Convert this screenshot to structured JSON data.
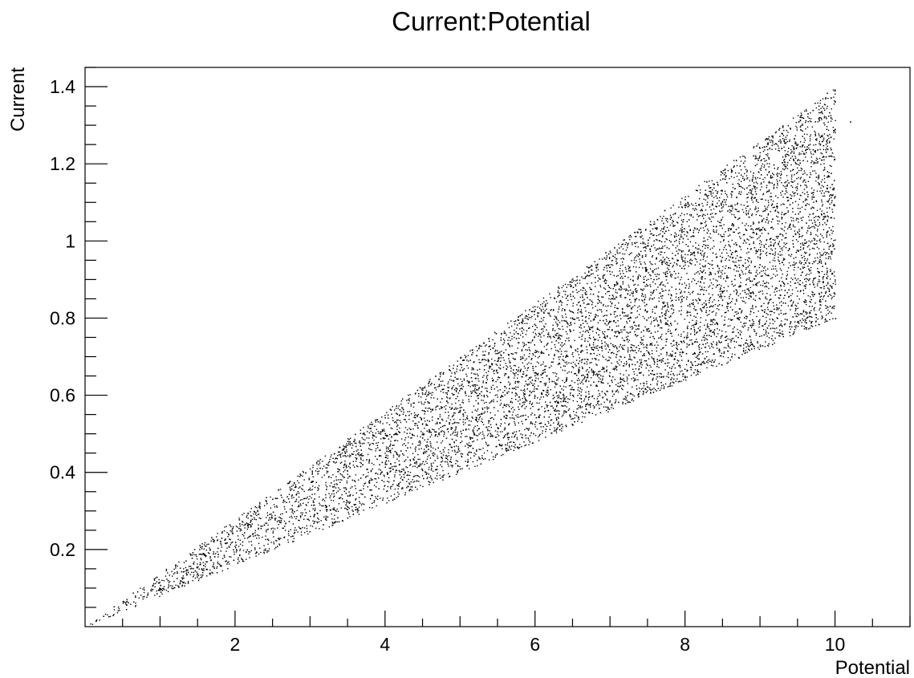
{
  "chart_data": {
    "type": "scatter",
    "title": "Current:Potential",
    "xlabel": "Potential",
    "ylabel": "Current",
    "xlim": [
      0,
      11
    ],
    "ylim": [
      0,
      1.45
    ],
    "x_ticks": [
      2,
      4,
      6,
      8,
      10
    ],
    "y_ticks": [
      0.2,
      0.4,
      0.6,
      0.8,
      1,
      1.2,
      1.4
    ],
    "x_tick_labels": [
      "2",
      "4",
      "6",
      "8",
      "10"
    ],
    "y_tick_labels": [
      "0.2",
      "0.4",
      "0.6",
      "0.8",
      "1",
      "1.2",
      "1.4"
    ],
    "grid": false,
    "point_count": 10000,
    "distribution": {
      "x_range": [
        0,
        10
      ],
      "slope_low": 0.08,
      "slope_high": 0.14,
      "sample_points": [
        {
          "x": 1,
          "y": 0.1
        },
        {
          "x": 2,
          "y": 0.22
        },
        {
          "x": 4,
          "y": 0.44
        },
        {
          "x": 6,
          "y": 0.66
        },
        {
          "x": 8,
          "y": 0.88
        },
        {
          "x": 9.7,
          "y": 1.34
        },
        {
          "x": 10.2,
          "y": 1.31
        },
        {
          "x": 10,
          "y": 0.8
        }
      ]
    }
  }
}
